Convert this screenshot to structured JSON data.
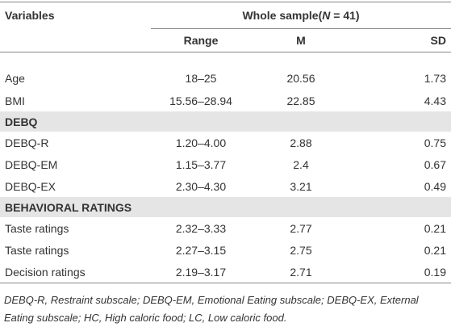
{
  "header": {
    "variables": "Variables",
    "group_parts": [
      "Whole sample(",
      "N",
      " = 41)"
    ],
    "columns": [
      "Range",
      "M",
      "SD"
    ]
  },
  "body": [
    {
      "rows": [
        [
          "Age",
          "18–25",
          "20.56",
          "1.73"
        ],
        [
          "BMI",
          "15.56–28.94",
          "22.85",
          "4.43"
        ]
      ]
    },
    {
      "title": "DEBQ",
      "rows": [
        [
          "DEBQ-R",
          "1.20–4.00",
          "2.88",
          "0.75"
        ],
        [
          "DEBQ-EM",
          "1.15–3.77",
          "2.4",
          "0.67"
        ],
        [
          "DEBQ-EX",
          "2.30–4.30",
          "3.21",
          "0.49"
        ]
      ]
    },
    {
      "title": "BEHAVIORAL RATINGS",
      "rows": [
        [
          "Taste ratings",
          "2.32–3.33",
          "2.77",
          "0.21"
        ],
        [
          "Taste ratings",
          "2.27–3.15",
          "2.75",
          "0.21"
        ],
        [
          "Decision ratings",
          "2.19–3.17",
          "2.71",
          "0.19"
        ]
      ]
    }
  ],
  "footnote": "DEBQ-R, Restraint subscale; DEBQ-EM, Emotional Eating subscale; DEBQ-EX, External Eating subscale; HC, High caloric food; LC, Low caloric food."
}
